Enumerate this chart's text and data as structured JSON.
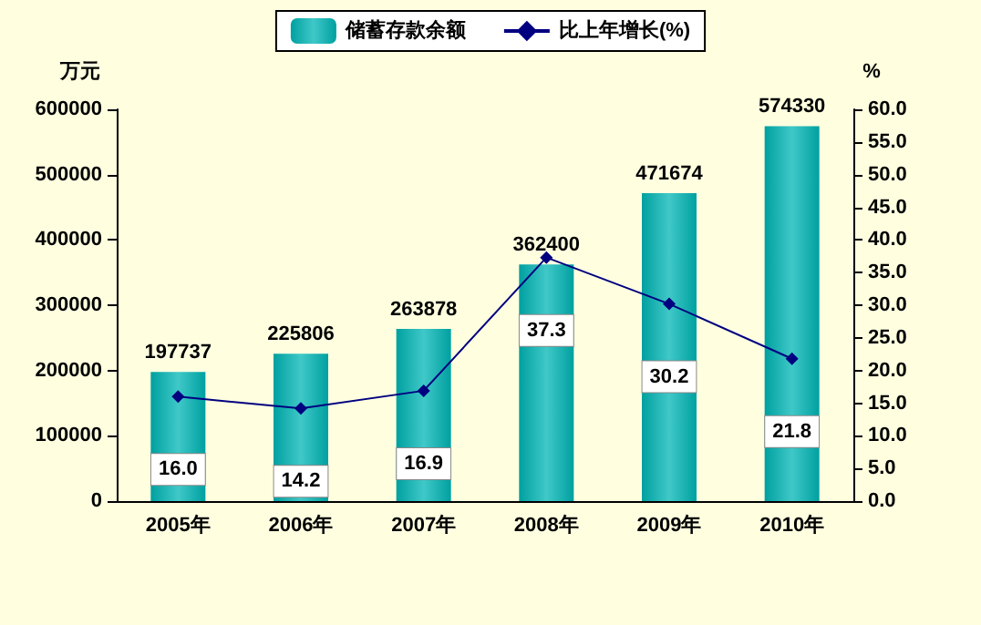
{
  "chart_data": {
    "type": "bar",
    "categories": [
      "2005年",
      "2006年",
      "2007年",
      "2008年",
      "2009年",
      "2010年"
    ],
    "series": [
      {
        "name": "储蓄存款余额",
        "color": "#00a0a0",
        "values": [
          197737,
          225806,
          263878,
          362400,
          471674,
          574330
        ],
        "data_labels": true
      },
      {
        "name": "比上年增长(%)",
        "type": "line",
        "axis": "y2",
        "color": "#000080",
        "values": [
          16.0,
          14.2,
          16.9,
          37.3,
          30.2,
          21.8
        ],
        "value_labels": [
          "16.0",
          "14.2",
          "16.9",
          "37.3",
          "30.2",
          "21.8"
        ],
        "marker": "diamond"
      }
    ],
    "ylabel": "万元",
    "y2label": "%",
    "ylim": [
      0,
      600000
    ],
    "yticks": [
      0,
      100000,
      200000,
      300000,
      400000,
      500000,
      600000
    ],
    "y2lim": [
      0,
      60
    ],
    "y2ticks": [
      {
        "value": 0,
        "label": "0.0"
      },
      {
        "value": 5,
        "label": "5.0"
      },
      {
        "value": 10,
        "label": "10.0"
      },
      {
        "value": 15,
        "label": "15.0"
      },
      {
        "value": 20,
        "label": "20.0"
      },
      {
        "value": 25,
        "label": "25.0"
      },
      {
        "value": 30,
        "label": "30.0"
      },
      {
        "value": 35,
        "label": "35.0"
      },
      {
        "value": 40,
        "label": "40.0"
      },
      {
        "value": 45,
        "label": "45.0"
      },
      {
        "value": 50,
        "label": "50.0"
      },
      {
        "value": 55,
        "label": "55.0"
      },
      {
        "value": 60,
        "label": "60.0"
      }
    ],
    "legend": "top",
    "grid": false
  }
}
